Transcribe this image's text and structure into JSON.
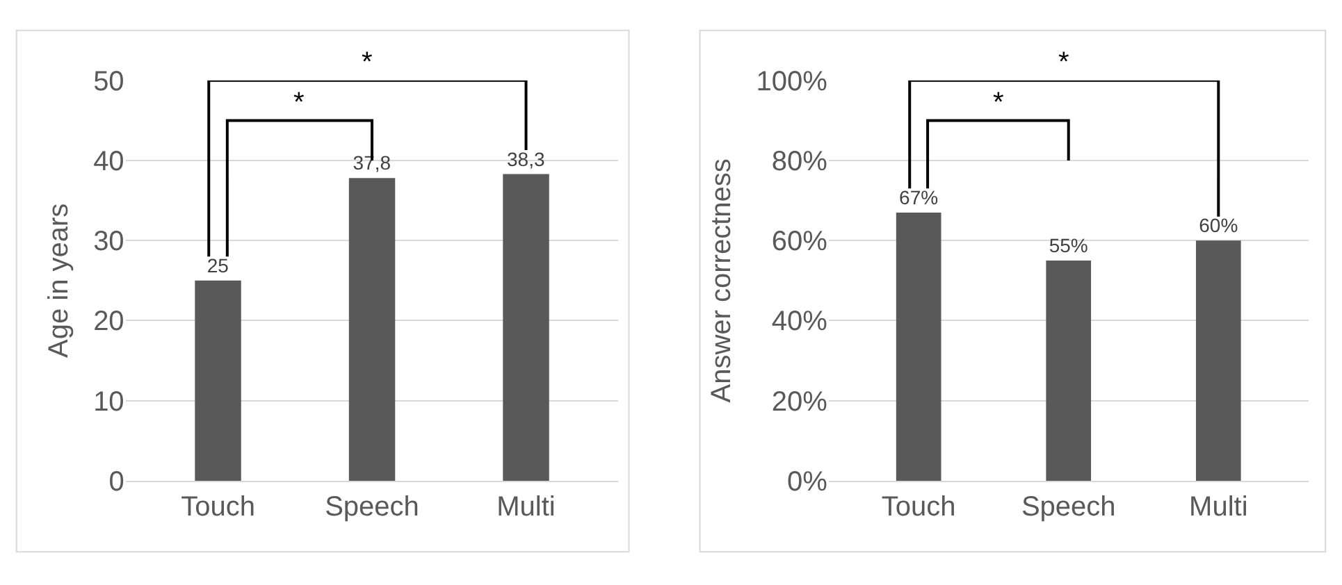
{
  "chart_data": [
    {
      "type": "bar",
      "categories": [
        "Touch",
        "Speech",
        "Multi"
      ],
      "values": [
        25,
        37.8,
        38.3
      ],
      "value_labels": [
        "25",
        "37,8",
        "38,3"
      ],
      "color": "#595959",
      "ylabel": "Age in years",
      "ylim": [
        0,
        50
      ],
      "yticks": [
        0,
        10,
        20,
        30,
        40,
        50
      ],
      "grid": "y",
      "annotations": [
        "*",
        "*"
      ]
    },
    {
      "type": "bar",
      "categories": [
        "Touch",
        "Speech",
        "Multi"
      ],
      "values": [
        67,
        55,
        60
      ],
      "value_labels": [
        "67%",
        "55%",
        "60%"
      ],
      "color": "#595959",
      "ylabel": "Answer correctness",
      "ylim": [
        0,
        100
      ],
      "yticks": [
        {
          "value": 0,
          "label": "0%"
        },
        {
          "value": 20,
          "label": "20%"
        },
        {
          "value": 40,
          "label": "40%"
        },
        {
          "value": 60,
          "label": "60%"
        },
        {
          "value": 80,
          "label": "80%"
        },
        {
          "value": 100,
          "label": "100%"
        }
      ],
      "grid": "y",
      "annotations": [
        "*",
        "*"
      ]
    }
  ]
}
